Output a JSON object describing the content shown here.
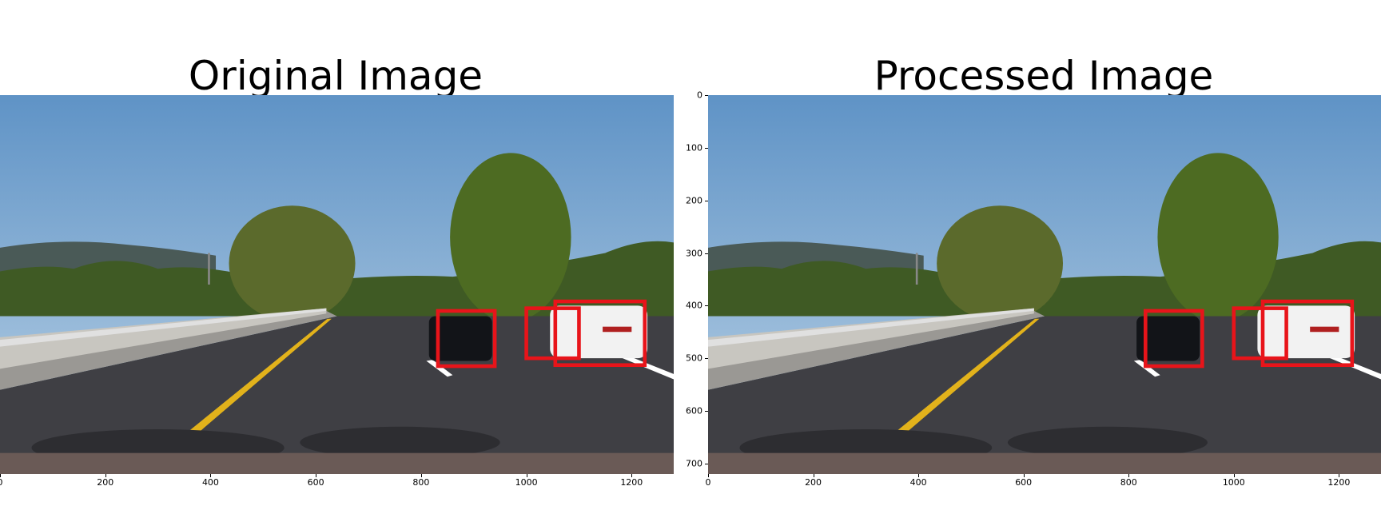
{
  "panels": [
    {
      "title": "Original Image",
      "x_ticks": [
        "0",
        "200",
        "400",
        "600",
        "800",
        "1000",
        "1200"
      ],
      "y_ticks": []
    },
    {
      "title": "Processed Image",
      "x_ticks": [
        "0",
        "200",
        "400",
        "600",
        "800",
        "1000",
        "1200"
      ],
      "y_ticks": [
        "0",
        "100",
        "200",
        "300",
        "400",
        "500",
        "600",
        "700"
      ]
    }
  ],
  "image": {
    "width_units": 1280,
    "height_units": 720,
    "boxes": [
      {
        "x1": 832,
        "y1": 410,
        "x2": 940,
        "y2": 515
      },
      {
        "x1": 1000,
        "y1": 405,
        "x2": 1100,
        "y2": 500
      },
      {
        "x1": 1055,
        "y1": 392,
        "x2": 1225,
        "y2": 513
      }
    ]
  },
  "colors": {
    "sky_top": "#5f93c6",
    "sky_bottom": "#bcd3e6",
    "road": "#3f3f44",
    "box": "#e8141a"
  }
}
